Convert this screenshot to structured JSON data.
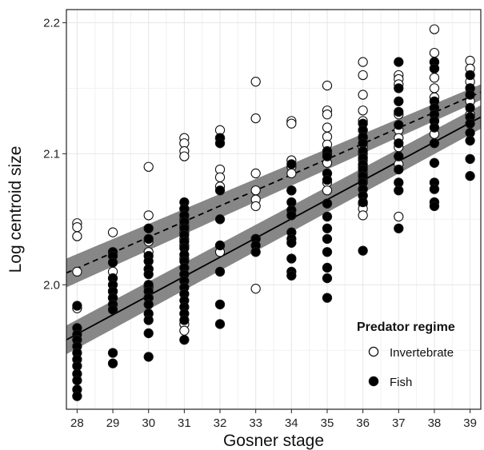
{
  "chart_data": {
    "type": "scatter",
    "xlabel": "Gosner stage",
    "ylabel": "Log centroid size",
    "xlim": [
      27.7,
      39.3
    ],
    "ylim": [
      1.905,
      2.21
    ],
    "x_ticks": [
      28,
      29,
      30,
      31,
      32,
      33,
      34,
      35,
      36,
      37,
      38,
      39
    ],
    "y_ticks": [
      2.0,
      2.1,
      2.2
    ],
    "x_tick_labels": [
      "28",
      "29",
      "30",
      "31",
      "32",
      "33",
      "34",
      "35",
      "36",
      "37",
      "38",
      "39"
    ],
    "y_tick_labels": [
      "2.0",
      "2.1",
      "2.2"
    ],
    "grid": true,
    "legend": {
      "title": "Predator regime",
      "placement": "bottom-right",
      "entries": [
        {
          "label": "Invertebrate",
          "marker": "open-circle"
        },
        {
          "label": "Fish",
          "marker": "filled-circle"
        }
      ]
    },
    "series": [
      {
        "name": "Invertebrate",
        "marker": "open-circle",
        "fit": {
          "line_style": "dashed",
          "x": [
            27.7,
            39.3
          ],
          "y": [
            2.009,
            2.147
          ],
          "band_halfwidth": [
            0.011,
            0.006
          ]
        },
        "points": [
          {
            "x": 28,
            "y": 2.047
          },
          {
            "x": 28,
            "y": 2.044
          },
          {
            "x": 28,
            "y": 2.037
          },
          {
            "x": 28,
            "y": 2.01
          },
          {
            "x": 28,
            "y": 1.982
          },
          {
            "x": 29,
            "y": 2.04
          },
          {
            "x": 29,
            "y": 2.01
          },
          {
            "x": 29,
            "y": 1.995
          },
          {
            "x": 29,
            "y": 1.99
          },
          {
            "x": 30,
            "y": 2.09
          },
          {
            "x": 30,
            "y": 2.053
          },
          {
            "x": 30,
            "y": 2.033
          },
          {
            "x": 30,
            "y": 2.025
          },
          {
            "x": 30,
            "y": 2.012
          },
          {
            "x": 30,
            "y": 1.998
          },
          {
            "x": 30,
            "y": 1.99
          },
          {
            "x": 31,
            "y": 2.112
          },
          {
            "x": 31,
            "y": 2.108
          },
          {
            "x": 31,
            "y": 2.102
          },
          {
            "x": 31,
            "y": 2.098
          },
          {
            "x": 31,
            "y": 2.058
          },
          {
            "x": 31,
            "y": 2.05
          },
          {
            "x": 31,
            "y": 2.045
          },
          {
            "x": 31,
            "y": 2.04
          },
          {
            "x": 31,
            "y": 2.035
          },
          {
            "x": 31,
            "y": 2.03
          },
          {
            "x": 31,
            "y": 2.02
          },
          {
            "x": 31,
            "y": 1.97
          },
          {
            "x": 31,
            "y": 1.965
          },
          {
            "x": 32,
            "y": 2.118
          },
          {
            "x": 32,
            "y": 2.112
          },
          {
            "x": 32,
            "y": 2.088
          },
          {
            "x": 32,
            "y": 2.082
          },
          {
            "x": 32,
            "y": 2.075
          },
          {
            "x": 32,
            "y": 2.03
          },
          {
            "x": 32,
            "y": 2.025
          },
          {
            "x": 33,
            "y": 2.155
          },
          {
            "x": 33,
            "y": 2.127
          },
          {
            "x": 33,
            "y": 2.085
          },
          {
            "x": 33,
            "y": 2.072
          },
          {
            "x": 33,
            "y": 2.065
          },
          {
            "x": 33,
            "y": 2.06
          },
          {
            "x": 33,
            "y": 2.035
          },
          {
            "x": 33,
            "y": 1.997
          },
          {
            "x": 34,
            "y": 2.125
          },
          {
            "x": 34,
            "y": 2.123
          },
          {
            "x": 34,
            "y": 2.095
          },
          {
            "x": 34,
            "y": 2.09
          },
          {
            "x": 34,
            "y": 2.085
          },
          {
            "x": 34,
            "y": 2.072
          },
          {
            "x": 35,
            "y": 2.152
          },
          {
            "x": 35,
            "y": 2.133
          },
          {
            "x": 35,
            "y": 2.13
          },
          {
            "x": 35,
            "y": 2.12
          },
          {
            "x": 35,
            "y": 2.113
          },
          {
            "x": 35,
            "y": 2.107
          },
          {
            "x": 35,
            "y": 2.1
          },
          {
            "x": 35,
            "y": 2.093
          },
          {
            "x": 35,
            "y": 2.085
          },
          {
            "x": 35,
            "y": 2.078
          },
          {
            "x": 35,
            "y": 2.072
          },
          {
            "x": 35,
            "y": 2.062
          },
          {
            "x": 36,
            "y": 2.17
          },
          {
            "x": 36,
            "y": 2.16
          },
          {
            "x": 36,
            "y": 2.145
          },
          {
            "x": 36,
            "y": 2.133
          },
          {
            "x": 36,
            "y": 2.125
          },
          {
            "x": 36,
            "y": 2.118
          },
          {
            "x": 36,
            "y": 2.112
          },
          {
            "x": 36,
            "y": 2.105
          },
          {
            "x": 36,
            "y": 2.1
          },
          {
            "x": 36,
            "y": 2.095
          },
          {
            "x": 36,
            "y": 2.09
          },
          {
            "x": 36,
            "y": 2.085
          },
          {
            "x": 36,
            "y": 2.08
          },
          {
            "x": 36,
            "y": 2.073
          },
          {
            "x": 36,
            "y": 2.068
          },
          {
            "x": 36,
            "y": 2.062
          },
          {
            "x": 36,
            "y": 2.058
          },
          {
            "x": 36,
            "y": 2.053
          },
          {
            "x": 37,
            "y": 2.16
          },
          {
            "x": 37,
            "y": 2.157
          },
          {
            "x": 37,
            "y": 2.153
          },
          {
            "x": 37,
            "y": 2.13
          },
          {
            "x": 37,
            "y": 2.118
          },
          {
            "x": 37,
            "y": 2.112
          },
          {
            "x": 37,
            "y": 2.105
          },
          {
            "x": 37,
            "y": 2.098
          },
          {
            "x": 37,
            "y": 2.092
          },
          {
            "x": 37,
            "y": 2.052
          },
          {
            "x": 38,
            "y": 2.195
          },
          {
            "x": 38,
            "y": 2.177
          },
          {
            "x": 38,
            "y": 2.17
          },
          {
            "x": 38,
            "y": 2.165
          },
          {
            "x": 38,
            "y": 2.158
          },
          {
            "x": 38,
            "y": 2.15
          },
          {
            "x": 38,
            "y": 2.143
          },
          {
            "x": 38,
            "y": 2.135
          },
          {
            "x": 38,
            "y": 2.125
          },
          {
            "x": 38,
            "y": 2.115
          },
          {
            "x": 39,
            "y": 2.171
          },
          {
            "x": 39,
            "y": 2.165
          },
          {
            "x": 39,
            "y": 2.16
          },
          {
            "x": 39,
            "y": 2.155
          },
          {
            "x": 39,
            "y": 2.15
          },
          {
            "x": 39,
            "y": 2.145
          },
          {
            "x": 39,
            "y": 2.14
          },
          {
            "x": 39,
            "y": 2.13
          }
        ]
      },
      {
        "name": "Fish",
        "marker": "filled-circle",
        "fit": {
          "line_style": "solid",
          "x": [
            27.7,
            39.3
          ],
          "y": [
            1.958,
            2.128
          ],
          "band_halfwidth": [
            0.011,
            0.009
          ]
        },
        "points": [
          {
            "x": 28,
            "y": 1.984
          },
          {
            "x": 28,
            "y": 1.967
          },
          {
            "x": 28,
            "y": 1.962
          },
          {
            "x": 28,
            "y": 1.958
          },
          {
            "x": 28,
            "y": 1.953
          },
          {
            "x": 28,
            "y": 1.948
          },
          {
            "x": 28,
            "y": 1.943
          },
          {
            "x": 28,
            "y": 1.938
          },
          {
            "x": 28,
            "y": 1.932
          },
          {
            "x": 28,
            "y": 1.927
          },
          {
            "x": 28,
            "y": 1.92
          },
          {
            "x": 28,
            "y": 1.915
          },
          {
            "x": 29,
            "y": 2.025
          },
          {
            "x": 29,
            "y": 2.022
          },
          {
            "x": 29,
            "y": 2.017
          },
          {
            "x": 29,
            "y": 2.005
          },
          {
            "x": 29,
            "y": 2.0
          },
          {
            "x": 29,
            "y": 1.995
          },
          {
            "x": 29,
            "y": 1.99
          },
          {
            "x": 29,
            "y": 1.985
          },
          {
            "x": 29,
            "y": 1.981
          },
          {
            "x": 29,
            "y": 1.948
          },
          {
            "x": 29,
            "y": 1.94
          },
          {
            "x": 30,
            "y": 2.043
          },
          {
            "x": 30,
            "y": 2.035
          },
          {
            "x": 30,
            "y": 2.022
          },
          {
            "x": 30,
            "y": 2.018
          },
          {
            "x": 30,
            "y": 2.012
          },
          {
            "x": 30,
            "y": 2.008
          },
          {
            "x": 30,
            "y": 2.0
          },
          {
            "x": 30,
            "y": 1.995
          },
          {
            "x": 30,
            "y": 1.99
          },
          {
            "x": 30,
            "y": 1.985
          },
          {
            "x": 30,
            "y": 1.978
          },
          {
            "x": 30,
            "y": 1.973
          },
          {
            "x": 30,
            "y": 1.963
          },
          {
            "x": 30,
            "y": 1.945
          },
          {
            "x": 31,
            "y": 2.063
          },
          {
            "x": 31,
            "y": 2.058
          },
          {
            "x": 31,
            "y": 2.053
          },
          {
            "x": 31,
            "y": 2.048
          },
          {
            "x": 31,
            "y": 2.043
          },
          {
            "x": 31,
            "y": 2.038
          },
          {
            "x": 31,
            "y": 2.033
          },
          {
            "x": 31,
            "y": 2.028
          },
          {
            "x": 31,
            "y": 2.023
          },
          {
            "x": 31,
            "y": 2.018
          },
          {
            "x": 31,
            "y": 2.013
          },
          {
            "x": 31,
            "y": 2.008
          },
          {
            "x": 31,
            "y": 2.003
          },
          {
            "x": 31,
            "y": 1.998
          },
          {
            "x": 31,
            "y": 1.993
          },
          {
            "x": 31,
            "y": 1.988
          },
          {
            "x": 31,
            "y": 1.983
          },
          {
            "x": 31,
            "y": 1.978
          },
          {
            "x": 31,
            "y": 1.973
          },
          {
            "x": 31,
            "y": 1.958
          },
          {
            "x": 32,
            "y": 2.112
          },
          {
            "x": 32,
            "y": 2.108
          },
          {
            "x": 32,
            "y": 2.072
          },
          {
            "x": 32,
            "y": 2.05
          },
          {
            "x": 32,
            "y": 2.03
          },
          {
            "x": 32,
            "y": 2.01
          },
          {
            "x": 32,
            "y": 1.985
          },
          {
            "x": 32,
            "y": 1.97
          },
          {
            "x": 33,
            "y": 2.035
          },
          {
            "x": 33,
            "y": 2.03
          },
          {
            "x": 33,
            "y": 2.025
          },
          {
            "x": 34,
            "y": 2.092
          },
          {
            "x": 34,
            "y": 2.072
          },
          {
            "x": 34,
            "y": 2.063
          },
          {
            "x": 34,
            "y": 2.057
          },
          {
            "x": 34,
            "y": 2.053
          },
          {
            "x": 34,
            "y": 2.04
          },
          {
            "x": 34,
            "y": 2.035
          },
          {
            "x": 34,
            "y": 2.032
          },
          {
            "x": 34,
            "y": 2.02
          },
          {
            "x": 34,
            "y": 2.01
          },
          {
            "x": 34,
            "y": 2.007
          },
          {
            "x": 35,
            "y": 2.102
          },
          {
            "x": 35,
            "y": 2.098
          },
          {
            "x": 35,
            "y": 2.085
          },
          {
            "x": 35,
            "y": 2.08
          },
          {
            "x": 35,
            "y": 2.062
          },
          {
            "x": 35,
            "y": 2.052
          },
          {
            "x": 35,
            "y": 2.043
          },
          {
            "x": 35,
            "y": 2.035
          },
          {
            "x": 35,
            "y": 2.025
          },
          {
            "x": 35,
            "y": 2.013
          },
          {
            "x": 35,
            "y": 2.005
          },
          {
            "x": 35,
            "y": 1.99
          },
          {
            "x": 36,
            "y": 2.123
          },
          {
            "x": 36,
            "y": 2.118
          },
          {
            "x": 36,
            "y": 2.113
          },
          {
            "x": 36,
            "y": 2.108
          },
          {
            "x": 36,
            "y": 2.102
          },
          {
            "x": 36,
            "y": 2.097
          },
          {
            "x": 36,
            "y": 2.092
          },
          {
            "x": 36,
            "y": 2.088
          },
          {
            "x": 36,
            "y": 2.083
          },
          {
            "x": 36,
            "y": 2.078
          },
          {
            "x": 36,
            "y": 2.073
          },
          {
            "x": 36,
            "y": 2.068
          },
          {
            "x": 36,
            "y": 2.063
          },
          {
            "x": 36,
            "y": 2.026
          },
          {
            "x": 37,
            "y": 2.17
          },
          {
            "x": 37,
            "y": 2.15
          },
          {
            "x": 37,
            "y": 2.14
          },
          {
            "x": 37,
            "y": 2.132
          },
          {
            "x": 37,
            "y": 2.122
          },
          {
            "x": 37,
            "y": 2.108
          },
          {
            "x": 37,
            "y": 2.098
          },
          {
            "x": 37,
            "y": 2.088
          },
          {
            "x": 37,
            "y": 2.078
          },
          {
            "x": 37,
            "y": 2.072
          },
          {
            "x": 37,
            "y": 2.043
          },
          {
            "x": 38,
            "y": 2.17
          },
          {
            "x": 38,
            "y": 2.165
          },
          {
            "x": 38,
            "y": 2.14
          },
          {
            "x": 38,
            "y": 2.135
          },
          {
            "x": 38,
            "y": 2.13
          },
          {
            "x": 38,
            "y": 2.125
          },
          {
            "x": 38,
            "y": 2.12
          },
          {
            "x": 38,
            "y": 2.108
          },
          {
            "x": 38,
            "y": 2.093
          },
          {
            "x": 38,
            "y": 2.078
          },
          {
            "x": 38,
            "y": 2.073
          },
          {
            "x": 38,
            "y": 2.063
          },
          {
            "x": 38,
            "y": 2.06
          },
          {
            "x": 39,
            "y": 2.16
          },
          {
            "x": 39,
            "y": 2.15
          },
          {
            "x": 39,
            "y": 2.145
          },
          {
            "x": 39,
            "y": 2.135
          },
          {
            "x": 39,
            "y": 2.128
          },
          {
            "x": 39,
            "y": 2.123
          },
          {
            "x": 39,
            "y": 2.116
          },
          {
            "x": 39,
            "y": 2.11
          },
          {
            "x": 39,
            "y": 2.096
          },
          {
            "x": 39,
            "y": 2.083
          }
        ]
      }
    ],
    "colors": {
      "point_stroke": "#111111",
      "fish_fill": "#000000",
      "invertebrate_fill": "#ffffff",
      "band": "#7a7a7a",
      "grid": "#e6e6e6",
      "fit_line": "#000000"
    }
  }
}
